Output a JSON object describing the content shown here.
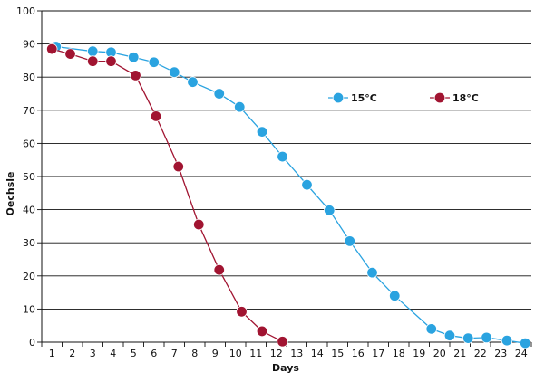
{
  "chart_data": {
    "type": "line",
    "title": "",
    "xlabel": "Days",
    "ylabel": "Oechsle",
    "xlim": [
      0.5,
      24.5
    ],
    "ylim": [
      0,
      100
    ],
    "y_ticks": [
      0,
      10,
      20,
      30,
      40,
      50,
      60,
      70,
      80,
      90,
      100
    ],
    "x_ticks": [
      1,
      2,
      3,
      4,
      5,
      6,
      7,
      8,
      9,
      10,
      11,
      12,
      13,
      14,
      15,
      16,
      17,
      18,
      19,
      20,
      21,
      22,
      23,
      24
    ],
    "grid": true,
    "legend_position": "top-right",
    "series": [
      {
        "name": "15°C",
        "color": "#2aa3e0",
        "points": [
          {
            "x": 1.2,
            "y": 89.2
          },
          {
            "x": 3.0,
            "y": 87.8
          },
          {
            "x": 3.9,
            "y": 87.5
          },
          {
            "x": 5.0,
            "y": 86.0
          },
          {
            "x": 6.0,
            "y": 84.5
          },
          {
            "x": 7.0,
            "y": 81.5
          },
          {
            "x": 7.9,
            "y": 78.5
          },
          {
            "x": 9.2,
            "y": 75.0
          },
          {
            "x": 10.2,
            "y": 71.0
          },
          {
            "x": 11.3,
            "y": 63.5
          },
          {
            "x": 12.3,
            "y": 56.0
          },
          {
            "x": 13.5,
            "y": 47.5
          },
          {
            "x": 14.6,
            "y": 39.8
          },
          {
            "x": 15.6,
            "y": 30.5
          },
          {
            "x": 16.7,
            "y": 21.0
          },
          {
            "x": 17.8,
            "y": 14.0
          },
          {
            "x": 19.6,
            "y": 4.0
          },
          {
            "x": 20.5,
            "y": 2.0
          },
          {
            "x": 21.4,
            "y": 1.2
          },
          {
            "x": 22.3,
            "y": 1.4
          },
          {
            "x": 23.3,
            "y": 0.5
          },
          {
            "x": 24.2,
            "y": -0.3
          }
        ]
      },
      {
        "name": "18°C",
        "color": "#a11431",
        "points": [
          {
            "x": 1.0,
            "y": 88.5
          },
          {
            "x": 1.9,
            "y": 87.0
          },
          {
            "x": 3.0,
            "y": 84.8
          },
          {
            "x": 3.9,
            "y": 84.8
          },
          {
            "x": 5.1,
            "y": 80.5
          },
          {
            "x": 6.1,
            "y": 68.2
          },
          {
            "x": 7.2,
            "y": 53.0
          },
          {
            "x": 8.2,
            "y": 35.5
          },
          {
            "x": 9.2,
            "y": 21.8
          },
          {
            "x": 10.3,
            "y": 9.2
          },
          {
            "x": 11.3,
            "y": 3.3
          },
          {
            "x": 12.3,
            "y": 0.2
          }
        ]
      }
    ]
  }
}
